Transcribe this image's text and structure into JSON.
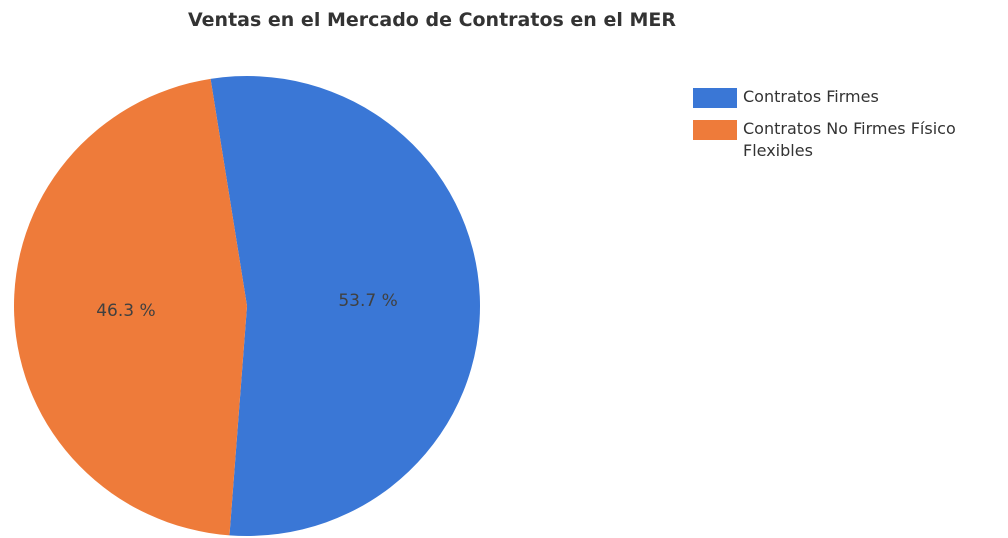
{
  "chart_data": {
    "type": "pie",
    "title": "Ventas en el Mercado de Contratos en el MER",
    "categories": [
      "Contratos Firmes",
      "Contratos No Firmes Físico Flexibles"
    ],
    "values": [
      53.7,
      46.3
    ],
    "value_labels": [
      "53.7 %",
      "46.3 %"
    ],
    "colors": [
      "#3a77d6",
      "#ee7b3a"
    ],
    "legend": "right"
  }
}
